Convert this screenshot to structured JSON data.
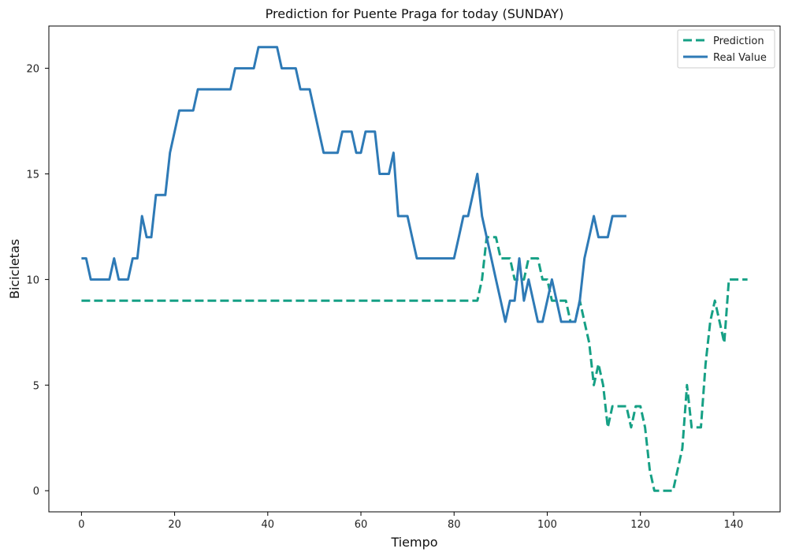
{
  "chart_data": {
    "type": "line",
    "title": "Prediction for Puente Praga for today (SUNDAY)",
    "xlabel": "Tiempo",
    "ylabel": "Bicicletas",
    "xlim": [
      -7,
      150
    ],
    "ylim": [
      -1,
      22
    ],
    "xticks": [
      0,
      20,
      40,
      60,
      80,
      100,
      120,
      140
    ],
    "yticks": [
      0,
      5,
      10,
      15,
      20
    ],
    "grid": false,
    "legend_position": "top-right",
    "series": [
      {
        "name": "Prediction",
        "style": "dashed",
        "color": "#16a085",
        "x": [
          0,
          1,
          2,
          3,
          4,
          5,
          6,
          7,
          8,
          9,
          10,
          11,
          12,
          13,
          14,
          15,
          16,
          17,
          18,
          19,
          20,
          21,
          22,
          23,
          24,
          25,
          26,
          27,
          28,
          29,
          30,
          31,
          32,
          33,
          34,
          35,
          36,
          37,
          38,
          39,
          40,
          41,
          42,
          43,
          44,
          45,
          46,
          47,
          48,
          49,
          50,
          51,
          52,
          53,
          54,
          55,
          56,
          57,
          58,
          59,
          60,
          61,
          62,
          63,
          64,
          65,
          66,
          67,
          68,
          69,
          70,
          71,
          72,
          73,
          74,
          75,
          76,
          77,
          78,
          79,
          80,
          81,
          82,
          83,
          84,
          85,
          86,
          87,
          88,
          89,
          90,
          91,
          92,
          93,
          94,
          95,
          96,
          97,
          98,
          99,
          100,
          101,
          102,
          103,
          104,
          105,
          106,
          107,
          108,
          109,
          110,
          111,
          112,
          113,
          114,
          115,
          116,
          117,
          118,
          119,
          120,
          121,
          122,
          123,
          124,
          125,
          126,
          127,
          128,
          129,
          130,
          131,
          132,
          133,
          134,
          135,
          136,
          137,
          138,
          139,
          140,
          141,
          142,
          143
        ],
        "values": [
          9,
          9,
          9,
          9,
          9,
          9,
          9,
          9,
          9,
          9,
          9,
          9,
          9,
          9,
          9,
          9,
          9,
          9,
          9,
          9,
          9,
          9,
          9,
          9,
          9,
          9,
          9,
          9,
          9,
          9,
          9,
          9,
          9,
          9,
          9,
          9,
          9,
          9,
          9,
          9,
          9,
          9,
          9,
          9,
          9,
          9,
          9,
          9,
          9,
          9,
          9,
          9,
          9,
          9,
          9,
          9,
          9,
          9,
          9,
          9,
          9,
          9,
          9,
          9,
          9,
          9,
          9,
          9,
          9,
          9,
          9,
          9,
          9,
          9,
          9,
          9,
          9,
          9,
          9,
          9,
          9,
          9,
          9,
          9,
          9,
          9,
          10,
          12,
          12,
          12,
          11,
          11,
          11,
          10,
          10,
          10,
          11,
          11,
          11,
          10,
          10,
          9,
          9,
          9,
          9,
          8,
          8,
          9,
          8,
          7,
          5,
          6,
          5,
          3,
          4,
          4,
          4,
          4,
          3,
          4,
          4,
          3,
          1,
          0,
          0,
          0,
          0,
          0,
          1,
          2,
          5,
          3,
          3,
          3,
          6,
          8,
          9,
          8,
          7,
          10,
          10,
          10,
          10,
          10
        ]
      },
      {
        "name": "Real Value",
        "style": "solid",
        "color": "#2e7ab6",
        "x": [
          0,
          1,
          2,
          3,
          4,
          5,
          6,
          7,
          8,
          9,
          10,
          11,
          12,
          13,
          14,
          15,
          16,
          17,
          18,
          19,
          20,
          21,
          22,
          23,
          24,
          25,
          26,
          27,
          28,
          29,
          30,
          31,
          32,
          33,
          34,
          35,
          36,
          37,
          38,
          39,
          40,
          41,
          42,
          43,
          44,
          45,
          46,
          47,
          48,
          49,
          50,
          51,
          52,
          53,
          54,
          55,
          56,
          57,
          58,
          59,
          60,
          61,
          62,
          63,
          64,
          65,
          66,
          67,
          68,
          69,
          70,
          71,
          72,
          73,
          74,
          75,
          76,
          77,
          78,
          79,
          80,
          81,
          82,
          83,
          84,
          85,
          86,
          87,
          88,
          89,
          90,
          91,
          92,
          93,
          94,
          95,
          96,
          97,
          98,
          99,
          100,
          101,
          102,
          103,
          104,
          105,
          106,
          107,
          108,
          109,
          110,
          111,
          112,
          113,
          114,
          115,
          116,
          117
        ],
        "values": [
          11,
          11,
          10,
          10,
          10,
          10,
          10,
          11,
          10,
          10,
          10,
          11,
          11,
          13,
          12,
          12,
          14,
          14,
          14,
          16,
          17,
          18,
          18,
          18,
          18,
          19,
          19,
          19,
          19,
          19,
          19,
          19,
          19,
          20,
          20,
          20,
          20,
          20,
          21,
          21,
          21,
          21,
          21,
          20,
          20,
          20,
          20,
          19,
          19,
          19,
          18,
          17,
          16,
          16,
          16,
          16,
          17,
          17,
          17,
          16,
          16,
          17,
          17,
          17,
          15,
          15,
          15,
          16,
          13,
          13,
          13,
          12,
          11,
          11,
          11,
          11,
          11,
          11,
          11,
          11,
          11,
          12,
          13,
          13,
          14,
          15,
          13,
          12,
          11,
          10,
          9,
          8,
          9,
          9,
          11,
          9,
          10,
          9,
          8,
          8,
          9,
          10,
          9,
          8,
          8,
          8,
          8,
          9,
          11,
          12,
          13,
          12,
          12,
          12,
          13,
          13,
          13,
          13
        ]
      }
    ]
  }
}
